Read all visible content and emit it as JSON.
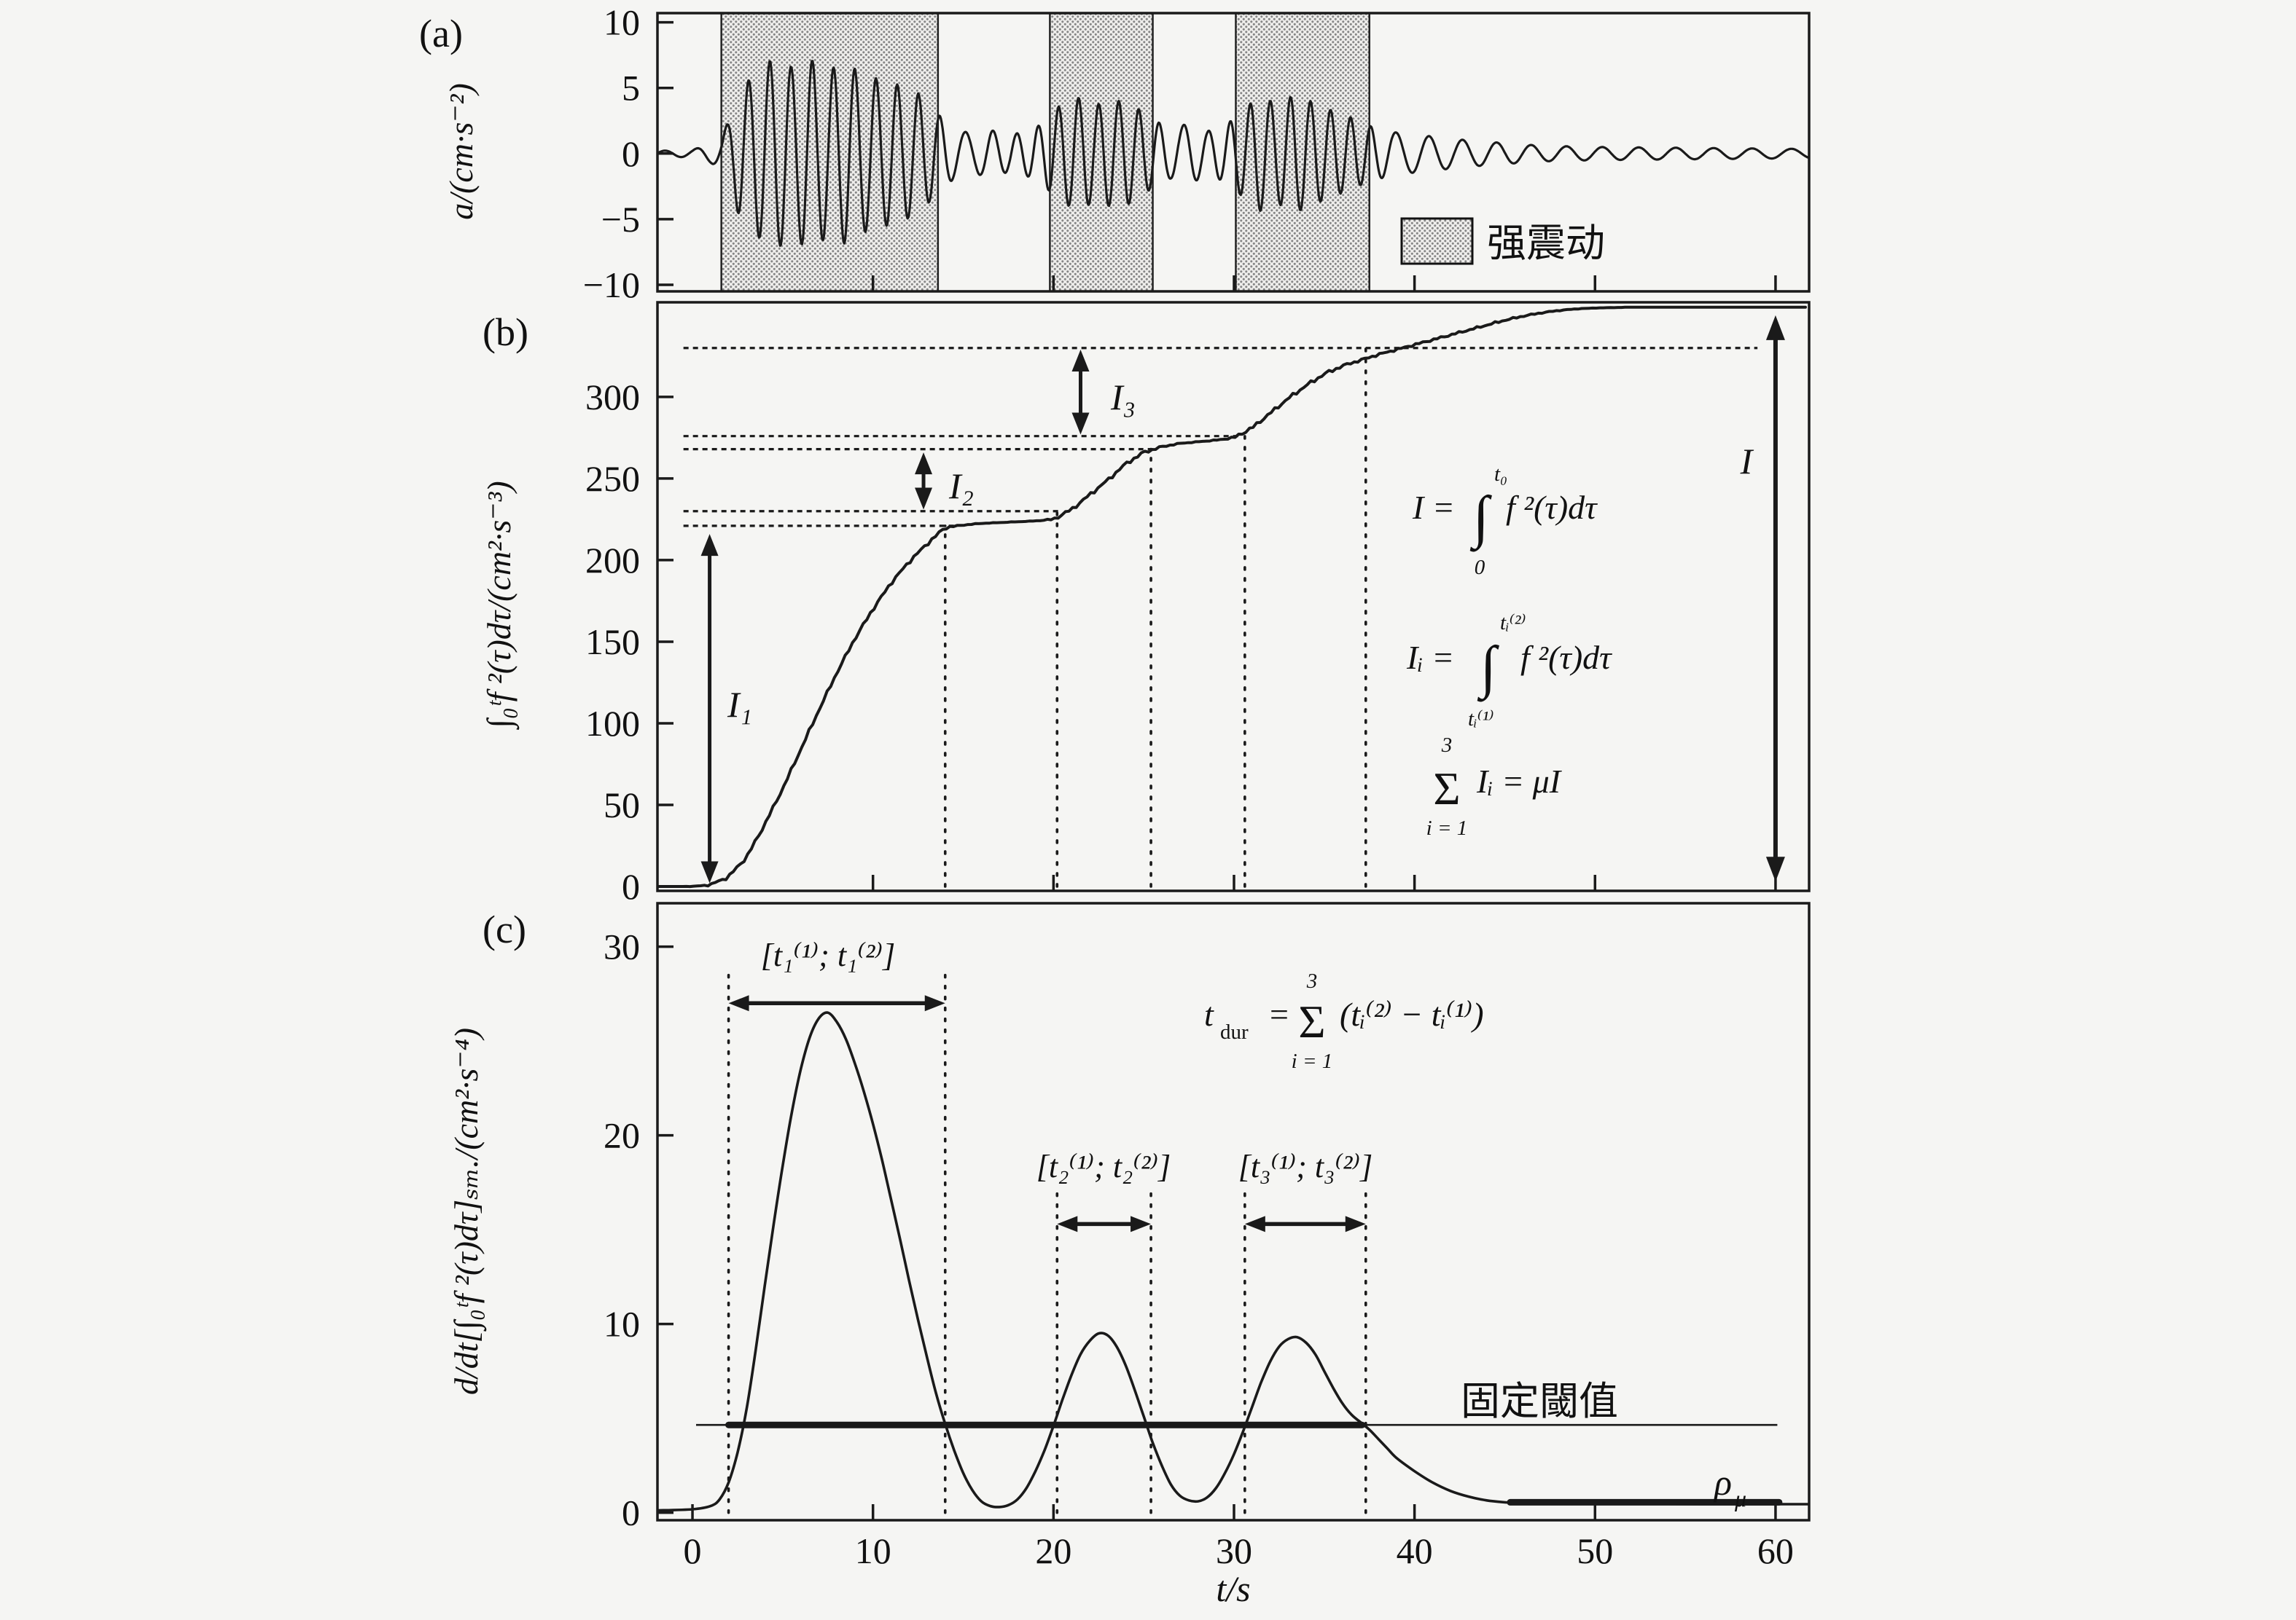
{
  "figure": {
    "background": "#f5f5f3",
    "ink": "#1a1a1a",
    "hatch_dot_color": "#868686"
  },
  "x_axis": {
    "label": "t/s",
    "xlim": [
      -1.94,
      61.86
    ],
    "ticks": {
      "values": [
        0,
        10,
        20,
        30,
        40,
        50,
        60
      ],
      "labels": [
        "0",
        "10",
        "20",
        "30",
        "40",
        "50",
        "60"
      ]
    }
  },
  "panels": {
    "a": {
      "letter": "(a)",
      "y_title": "a/(cm·s⁻²)",
      "ylim": [
        -10.5,
        10.7
      ],
      "y_ticks": {
        "values": [
          10,
          5,
          0,
          -5,
          -10
        ],
        "labels": [
          "10",
          "5",
          "0",
          "−5",
          "−10"
        ]
      },
      "legend": {
        "label": "强震动"
      }
    },
    "b": {
      "letter": "(b)",
      "y_title": "∫₀ᵗf ²(τ)dτ/(cm²·s⁻³)",
      "ylim": [
        -2.7,
        358
      ],
      "y_ticks": {
        "values": [
          0,
          50,
          100,
          150,
          200,
          250,
          300
        ],
        "labels": [
          "0",
          "50",
          "100",
          "150",
          "200",
          "250",
          "300"
        ]
      }
    },
    "c": {
      "letter": "(c)",
      "y_title": "d/dt[∫₀ᵗf ²(τ)dτ]ₛₘ./(cm²·s⁻⁴)",
      "ylim": [
        -0.4,
        32.3
      ],
      "y_ticks": {
        "values": [
          0,
          10,
          20,
          30
        ],
        "labels": [
          "0",
          "10",
          "20",
          "30"
        ]
      }
    }
  },
  "chart_data": [
    {
      "type": "line",
      "panel": "a",
      "title": "acceleration time history",
      "ylabel": "a/(cm·s⁻²)",
      "xlabel": "t/s",
      "ylim": [
        -10,
        10
      ],
      "xlim": [
        0,
        60
      ],
      "waveform": {
        "envelope": [
          [
            -1.9,
            0.2
          ],
          [
            0,
            0.3
          ],
          [
            1,
            0.7
          ],
          [
            1.6,
            1.2
          ],
          [
            2,
            2.5
          ],
          [
            2.6,
            4.8
          ],
          [
            3.5,
            6.2
          ],
          [
            4.5,
            7.3
          ],
          [
            5.5,
            6.6
          ],
          [
            6.5,
            7.2
          ],
          [
            7.5,
            6.4
          ],
          [
            8.5,
            6.9
          ],
          [
            9.5,
            6.0
          ],
          [
            10.5,
            5.6
          ],
          [
            11.5,
            5.2
          ],
          [
            12.5,
            4.6
          ],
          [
            13.6,
            3.0
          ],
          [
            14.5,
            1.9
          ],
          [
            15.5,
            1.5
          ],
          [
            16.5,
            1.8
          ],
          [
            17.5,
            1.4
          ],
          [
            18.5,
            1.7
          ],
          [
            19.3,
            2.2
          ],
          [
            20.3,
            3.6
          ],
          [
            21.3,
            4.3
          ],
          [
            22.3,
            3.7
          ],
          [
            23.3,
            4.1
          ],
          [
            24.3,
            3.8
          ],
          [
            25.5,
            2.6
          ],
          [
            26.5,
            1.9
          ],
          [
            27.5,
            2.3
          ],
          [
            28.5,
            1.7
          ],
          [
            29.5,
            2.1
          ],
          [
            30.4,
            3.2
          ],
          [
            31.4,
            4.4
          ],
          [
            32.4,
            3.8
          ],
          [
            33.4,
            4.5
          ],
          [
            34.4,
            3.9
          ],
          [
            35.4,
            3.3
          ],
          [
            36.4,
            2.8
          ],
          [
            37.5,
            2.1
          ],
          [
            39,
            1.6
          ],
          [
            41,
            1.3
          ],
          [
            43,
            1.0
          ],
          [
            45,
            0.8
          ],
          [
            47,
            0.6
          ],
          [
            50,
            0.5
          ],
          [
            54,
            0.45
          ],
          [
            58,
            0.4
          ],
          [
            61.8,
            0.35
          ]
        ],
        "frequency_hz": [
          [
            -1.9,
            0.55
          ],
          [
            1.5,
            0.6
          ],
          [
            2.5,
            0.85
          ],
          [
            13.5,
            0.85
          ],
          [
            15,
            0.6
          ],
          [
            19.5,
            0.9
          ],
          [
            25.5,
            0.9
          ],
          [
            27,
            0.65
          ],
          [
            30,
            0.9
          ],
          [
            37.5,
            0.9
          ],
          [
            39,
            0.55
          ],
          [
            61.8,
            0.45
          ]
        ]
      },
      "strong_motion_regions": [
        [
          1.6,
          13.6
        ],
        [
          19.8,
          25.5
        ],
        [
          30.1,
          37.5
        ]
      ],
      "legend_label": "强震动"
    },
    {
      "type": "line",
      "panel": "b",
      "title": "cumulative integral of f²(τ) (Husid-type curve)",
      "ylabel": "∫f²(τ)dτ/(cm²·s⁻³)",
      "xlabel": "t/s",
      "ylim": [
        0,
        358
      ],
      "xlim": [
        0,
        60
      ],
      "points": [
        [
          -1.9,
          0
        ],
        [
          0,
          0
        ],
        [
          1,
          1
        ],
        [
          2,
          6
        ],
        [
          3,
          18
        ],
        [
          4,
          38
        ],
        [
          5,
          60
        ],
        [
          6,
          84
        ],
        [
          7,
          108
        ],
        [
          8,
          131
        ],
        [
          9,
          152
        ],
        [
          10,
          170
        ],
        [
          11,
          186
        ],
        [
          12,
          199
        ],
        [
          13,
          210
        ],
        [
          14,
          220
        ],
        [
          15,
          221.5
        ],
        [
          16,
          222.5
        ],
        [
          17,
          223
        ],
        [
          18,
          223.5
        ],
        [
          19,
          224
        ],
        [
          20,
          225
        ],
        [
          21,
          231
        ],
        [
          22,
          240
        ],
        [
          23,
          249
        ],
        [
          24,
          259
        ],
        [
          25,
          266
        ],
        [
          26,
          269.5
        ],
        [
          27,
          271.5
        ],
        [
          28,
          272.5
        ],
        [
          29,
          273.5
        ],
        [
          30,
          275
        ],
        [
          31,
          281
        ],
        [
          32,
          290
        ],
        [
          33,
          299
        ],
        [
          34,
          307
        ],
        [
          35,
          314
        ],
        [
          36,
          319
        ],
        [
          37,
          322.5
        ],
        [
          38,
          326
        ],
        [
          39,
          329
        ],
        [
          40,
          332
        ],
        [
          41,
          335
        ],
        [
          42,
          338
        ],
        [
          43,
          341
        ],
        [
          44,
          344
        ],
        [
          45,
          347
        ],
        [
          46,
          349.5
        ],
        [
          47,
          351.5
        ],
        [
          48,
          353
        ],
        [
          49,
          354
        ],
        [
          50,
          354.5
        ],
        [
          52,
          355
        ],
        [
          56,
          355
        ],
        [
          61.8,
          355
        ]
      ],
      "dotted_h_lines": [
        [
          330,
          -0.5,
          59
        ],
        [
          276,
          -0.5,
          30.3
        ],
        [
          268,
          -0.5,
          25.6
        ],
        [
          230,
          -0.5,
          20.4
        ],
        [
          221,
          -0.5,
          14.5
        ]
      ],
      "dotted_v_lines": [
        [
          14,
          0,
          221
        ],
        [
          20.2,
          0,
          230
        ],
        [
          25.4,
          0,
          268
        ],
        [
          30.6,
          0,
          276
        ],
        [
          37.3,
          0,
          330
        ]
      ],
      "value_arrows": [
        {
          "name": "I1",
          "t": 0.95,
          "from": 2,
          "to": 216
        },
        {
          "name": "I2",
          "t": 12.8,
          "from": 231,
          "to": 266
        },
        {
          "name": "I3",
          "t": 21.5,
          "from": 277,
          "to": 329
        },
        {
          "name": "I_total",
          "t": 60.0,
          "from": 3,
          "to": 350
        }
      ]
    },
    {
      "type": "line",
      "panel": "c",
      "title": "smoothed derivative of cumulative integral",
      "ylabel": "d/dt[∫f²(τ)dτ]sm./(cm²·s⁻⁴)",
      "xlabel": "t/s",
      "ylim": [
        0,
        32
      ],
      "xlim": [
        0,
        60
      ],
      "points": [
        [
          -1.9,
          0.12
        ],
        [
          0,
          0.18
        ],
        [
          1,
          0.35
        ],
        [
          1.5,
          0.7
        ],
        [
          2,
          1.6
        ],
        [
          2.5,
          3.2
        ],
        [
          3,
          5.5
        ],
        [
          3.5,
          8.6
        ],
        [
          4,
          12
        ],
        [
          4.5,
          15.3
        ],
        [
          5,
          18.4
        ],
        [
          5.5,
          21.2
        ],
        [
          6,
          23.5
        ],
        [
          6.5,
          25.2
        ],
        [
          7,
          26.2
        ],
        [
          7.5,
          26.5
        ],
        [
          8,
          26
        ],
        [
          8.5,
          25.1
        ],
        [
          9,
          23.8
        ],
        [
          9.5,
          22.3
        ],
        [
          10,
          20.6
        ],
        [
          10.5,
          18.7
        ],
        [
          11,
          16.6
        ],
        [
          11.5,
          14.5
        ],
        [
          12,
          12.3
        ],
        [
          12.5,
          10.2
        ],
        [
          13,
          8.2
        ],
        [
          13.5,
          6.3
        ],
        [
          14,
          4.7
        ],
        [
          14.5,
          3.3
        ],
        [
          15,
          2.1
        ],
        [
          15.5,
          1.2
        ],
        [
          16,
          0.6
        ],
        [
          16.5,
          0.35
        ],
        [
          17,
          0.3
        ],
        [
          17.5,
          0.4
        ],
        [
          18,
          0.7
        ],
        [
          18.5,
          1.3
        ],
        [
          19,
          2.2
        ],
        [
          19.5,
          3.3
        ],
        [
          20,
          4.6
        ],
        [
          20.5,
          6
        ],
        [
          21,
          7.3
        ],
        [
          21.5,
          8.4
        ],
        [
          22,
          9.1
        ],
        [
          22.5,
          9.5
        ],
        [
          23,
          9.4
        ],
        [
          23.5,
          8.8
        ],
        [
          24,
          7.8
        ],
        [
          24.5,
          6.5
        ],
        [
          25,
          5.1
        ],
        [
          25.5,
          3.7
        ],
        [
          26,
          2.5
        ],
        [
          26.5,
          1.5
        ],
        [
          27,
          0.9
        ],
        [
          27.5,
          0.65
        ],
        [
          28,
          0.6
        ],
        [
          28.5,
          0.8
        ],
        [
          29,
          1.3
        ],
        [
          29.5,
          2.1
        ],
        [
          30,
          3.1
        ],
        [
          30.5,
          4.3
        ],
        [
          31,
          5.6
        ],
        [
          31.5,
          6.9
        ],
        [
          32,
          8
        ],
        [
          32.5,
          8.8
        ],
        [
          33,
          9.2
        ],
        [
          33.5,
          9.3
        ],
        [
          34,
          9
        ],
        [
          34.5,
          8.4
        ],
        [
          35,
          7.5
        ],
        [
          35.5,
          6.6
        ],
        [
          36,
          5.8
        ],
        [
          36.5,
          5.2
        ],
        [
          37,
          4.8
        ],
        [
          37.5,
          4.4
        ],
        [
          38,
          3.9
        ],
        [
          38.5,
          3.4
        ],
        [
          39,
          2.9
        ],
        [
          40,
          2.2
        ],
        [
          41,
          1.6
        ],
        [
          42,
          1.15
        ],
        [
          43,
          0.85
        ],
        [
          44,
          0.65
        ],
        [
          45,
          0.55
        ],
        [
          46,
          0.5
        ],
        [
          47,
          0.48
        ],
        [
          48,
          0.47
        ],
        [
          50,
          0.46
        ],
        [
          52,
          0.46
        ],
        [
          54,
          0.46
        ],
        [
          56,
          0.45
        ],
        [
          58,
          0.45
        ],
        [
          60,
          0.45
        ],
        [
          61.8,
          0.45
        ]
      ],
      "threshold": {
        "value": 4.65,
        "thin_span": [
          0.2,
          60.1
        ],
        "thick_span": [
          2,
          37.1
        ]
      },
      "tail_bar": {
        "value": 0.55,
        "span": [
          45.3,
          60.2
        ]
      },
      "dotted_v_lines": [
        [
          2,
          0,
          28.8
        ],
        [
          14,
          0,
          28.8
        ],
        [
          20.2,
          0,
          17.2
        ],
        [
          25.4,
          0,
          17.2
        ],
        [
          30.6,
          0,
          17.2
        ],
        [
          37.3,
          0,
          17.2
        ]
      ],
      "interval_arrows": [
        [
          2,
          14,
          27.0
        ],
        [
          20.2,
          25.4,
          15.3
        ],
        [
          30.6,
          37.3,
          15.3
        ]
      ]
    }
  ],
  "annotations": {
    "i_labels": {
      "i1": "I₁",
      "i2": "I₂",
      "i3": "I₃",
      "total": "I"
    },
    "formula_total": {
      "lhs": "I =",
      "int": "∫",
      "upper": "t₀",
      "lower": "0",
      "integrand": "f ²(τ)dτ"
    },
    "formula_segment": {
      "lhs": "Iᵢ =",
      "int": "∫",
      "upper": "tᵢ⁽²⁾",
      "lower": "tᵢ⁽¹⁾",
      "integrand": "f ²(τ)dτ"
    },
    "formula_sum": {
      "sigma": "Σ",
      "upper": "3",
      "lower": "i = 1",
      "rhs": "Iᵢ = μI"
    },
    "formula_tdur": {
      "t": "t",
      "sub": "dur",
      "eq": "=",
      "sigma": "Σ",
      "upper": "3",
      "lower": "i = 1",
      "rhs": "(tᵢ⁽²⁾ − tᵢ⁽¹⁾)"
    },
    "intervals": [
      "[t₁⁽¹⁾; t₁⁽²⁾]",
      "[t₂⁽¹⁾; t₂⁽²⁾]",
      "[t₃⁽¹⁾; t₃⁽²⁾]"
    ],
    "threshold_label": "固定閾值",
    "rho": {
      "base": "ρ",
      "sub": "μ"
    },
    "legend_label": "强震动"
  }
}
